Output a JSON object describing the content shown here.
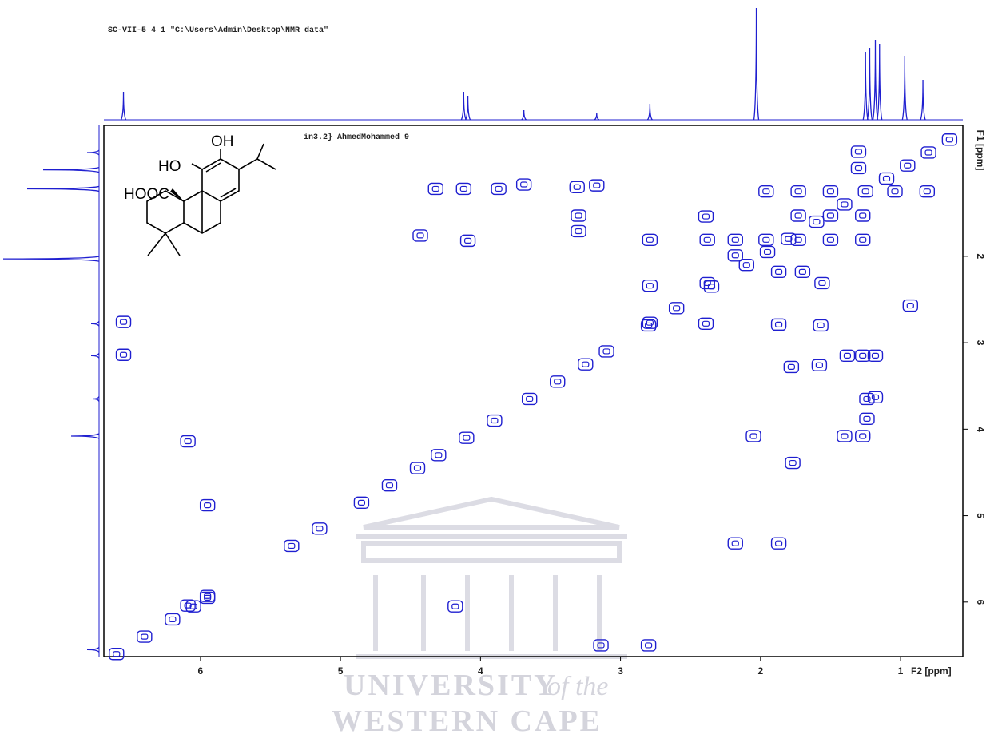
{
  "header": "SC-VII-5  4  1  \"C:\\Users\\Admin\\Desktop\\NMR data\"",
  "chart_data": {
    "type": "contour",
    "plot_label": "in3.2} AhmedMohammed 9",
    "xlabel": "F2 [ppm]",
    "ylabel": "F1 [ppm]",
    "xlim": [
      6.69,
      0.555
    ],
    "ylim": [
      0.486,
      6.63
    ],
    "xticks": [
      6,
      5,
      4,
      3,
      2,
      1
    ],
    "yticks": [
      2,
      3,
      4,
      5,
      6
    ],
    "color": "#1f1fd0",
    "peaks": {
      "x": [
        6.6,
        6.4,
        6.2,
        6.05,
        5.95,
        5.35,
        5.15,
        4.85,
        4.65,
        4.45,
        4.3,
        4.1,
        3.9,
        3.65,
        3.45,
        3.25,
        3.1,
        2.8,
        2.6,
        2.35,
        2.1,
        1.95,
        1.8,
        1.6,
        1.4,
        1.25,
        1.1,
        0.95,
        0.8,
        0.65,
        6.55,
        6.55,
        4.12,
        4.32,
        3.87,
        3.69,
        3.31,
        3.17,
        3.3,
        3.3,
        4.43,
        4.09,
        2.79,
        2.79,
        2.79,
        2.39,
        2.38,
        2.38,
        2.39,
        2.18,
        2.18,
        1.87,
        1.87,
        1.7,
        1.56,
        1.78,
        1.58,
        1.38,
        1.27,
        1.18,
        1.24,
        1.18,
        1.24,
        1.27,
        1.4,
        2.05,
        2.18,
        1.87,
        1.77,
        0.81,
        1.04,
        1.3,
        1.3,
        1.96,
        1.73,
        1.5,
        1.73,
        1.5,
        1.27,
        1.73,
        1.5,
        1.27,
        1.96,
        6.09,
        5.95,
        6.09,
        5.95,
        3.14,
        2.8,
        4.18,
        1.57,
        0.93
      ],
      "y": [
        6.6,
        6.4,
        6.2,
        6.05,
        5.95,
        5.35,
        5.15,
        4.85,
        4.65,
        4.45,
        4.3,
        4.1,
        3.9,
        3.65,
        3.45,
        3.25,
        3.1,
        2.8,
        2.6,
        2.35,
        2.1,
        1.95,
        1.8,
        1.6,
        1.4,
        1.25,
        1.1,
        0.95,
        0.8,
        0.65,
        2.76,
        3.14,
        1.22,
        1.22,
        1.22,
        1.17,
        1.2,
        1.18,
        1.53,
        1.71,
        1.76,
        1.82,
        1.81,
        2.34,
        2.77,
        1.54,
        1.81,
        2.31,
        2.78,
        1.81,
        1.99,
        2.18,
        2.79,
        2.18,
        2.31,
        3.28,
        3.26,
        3.15,
        3.15,
        3.15,
        3.65,
        3.63,
        3.88,
        4.08,
        4.08,
        4.08,
        5.32,
        5.32,
        4.39,
        1.25,
        1.25,
        0.79,
        0.98,
        1.25,
        1.25,
        1.25,
        1.53,
        1.53,
        1.53,
        1.81,
        1.81,
        1.81,
        1.81,
        6.04,
        5.93,
        4.14,
        4.88,
        6.5,
        6.5,
        6.05,
        2.8,
        2.57
      ]
    },
    "top_projection": {
      "x": [
        6.55,
        4.12,
        4.09,
        3.69,
        3.17,
        2.79,
        2.03,
        1.25,
        1.22,
        1.18,
        1.15,
        0.97,
        0.84
      ],
      "values": [
        35,
        35,
        30,
        12,
        8,
        20,
        140,
        85,
        90,
        100,
        95,
        80,
        50
      ]
    },
    "left_projection": {
      "y": [
        0.8,
        1.0,
        1.22,
        2.03,
        2.78,
        3.15,
        3.65,
        4.08,
        6.55
      ],
      "values": [
        15,
        70,
        90,
        120,
        10,
        10,
        8,
        35,
        15
      ]
    }
  },
  "structure": {
    "oh": "OH",
    "ho": "HO",
    "hooc": "HOOC"
  },
  "watermark": {
    "line1": "UNIVERSITY",
    "line1_suffix": "of the",
    "line2": "WESTERN CAPE"
  }
}
